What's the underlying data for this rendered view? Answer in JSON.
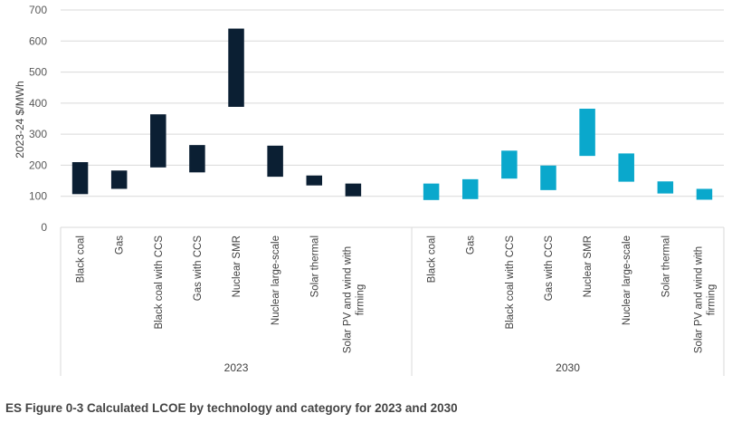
{
  "caption": "ES Figure 0-3 Calculated LCOE by technology and category for 2023 and 2030",
  "chart_data": {
    "type": "bar",
    "subtype": "floating-range",
    "title": "",
    "xlabel": "",
    "ylabel": "2023-24 $/MWh",
    "ylim": [
      0,
      700
    ],
    "yticks": [
      0,
      100,
      200,
      300,
      400,
      500,
      600,
      700
    ],
    "grid": true,
    "legend": "none",
    "groups": [
      {
        "name": "2023",
        "color": "#0b1f33",
        "slots": 9,
        "categories": [
          "Black coal",
          "Gas",
          "Black coal with CCS",
          "Gas with CCS",
          "Nuclear SMR",
          "Nuclear large-scale",
          "Solar thermal",
          "Solar PV and wind with firming"
        ],
        "low": [
          107,
          124,
          193,
          177,
          388,
          163,
          135,
          100
        ],
        "high": [
          210,
          183,
          364,
          265,
          640,
          263,
          167,
          141
        ]
      },
      {
        "name": "2030",
        "color": "#0aa8cc",
        "slots": 8,
        "categories": [
          "Black coal",
          "Gas",
          "Black coal with CCS",
          "Gas with CCS",
          "Nuclear SMR",
          "Nuclear large-scale",
          "Solar thermal",
          "Solar PV and wind with firming"
        ],
        "low": [
          88,
          91,
          157,
          120,
          230,
          147,
          109,
          89
        ],
        "high": [
          141,
          155,
          247,
          199,
          382,
          238,
          148,
          124
        ]
      }
    ]
  }
}
